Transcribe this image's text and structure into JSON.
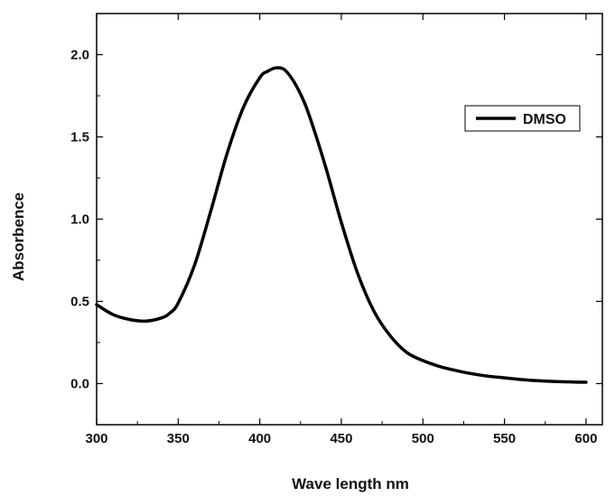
{
  "chart_data": {
    "type": "line",
    "title": "",
    "xlabel": "Wave length nm",
    "ylabel": "Absorbence",
    "xlim": [
      300,
      610
    ],
    "ylim": [
      -0.25,
      2.25
    ],
    "x_ticks": [
      300,
      350,
      400,
      450,
      500,
      550,
      600
    ],
    "x_tick_labels": [
      "300",
      "350",
      "400",
      "450",
      "500",
      "550",
      "600"
    ],
    "y_ticks": [
      0.0,
      0.5,
      1.0,
      1.5,
      2.0
    ],
    "y_tick_labels": [
      "0.0",
      "0.5",
      "1.0",
      "1.5",
      "2.0"
    ],
    "grid": false,
    "legend_position": "top-right",
    "series": [
      {
        "name": "DMSO",
        "color": "#000000",
        "x": [
          300,
          310,
          320,
          330,
          340,
          345,
          350,
          360,
          370,
          380,
          390,
          400,
          405,
          410,
          415,
          420,
          425,
          430,
          440,
          450,
          460,
          470,
          480,
          490,
          500,
          510,
          520,
          530,
          540,
          550,
          560,
          570,
          580,
          590,
          600
        ],
        "y": [
          0.48,
          0.42,
          0.39,
          0.38,
          0.4,
          0.43,
          0.49,
          0.72,
          1.05,
          1.4,
          1.68,
          1.86,
          1.9,
          1.92,
          1.91,
          1.85,
          1.76,
          1.64,
          1.33,
          0.98,
          0.67,
          0.44,
          0.29,
          0.19,
          0.14,
          0.105,
          0.08,
          0.06,
          0.045,
          0.035,
          0.025,
          0.018,
          0.013,
          0.01,
          0.008
        ]
      }
    ]
  }
}
